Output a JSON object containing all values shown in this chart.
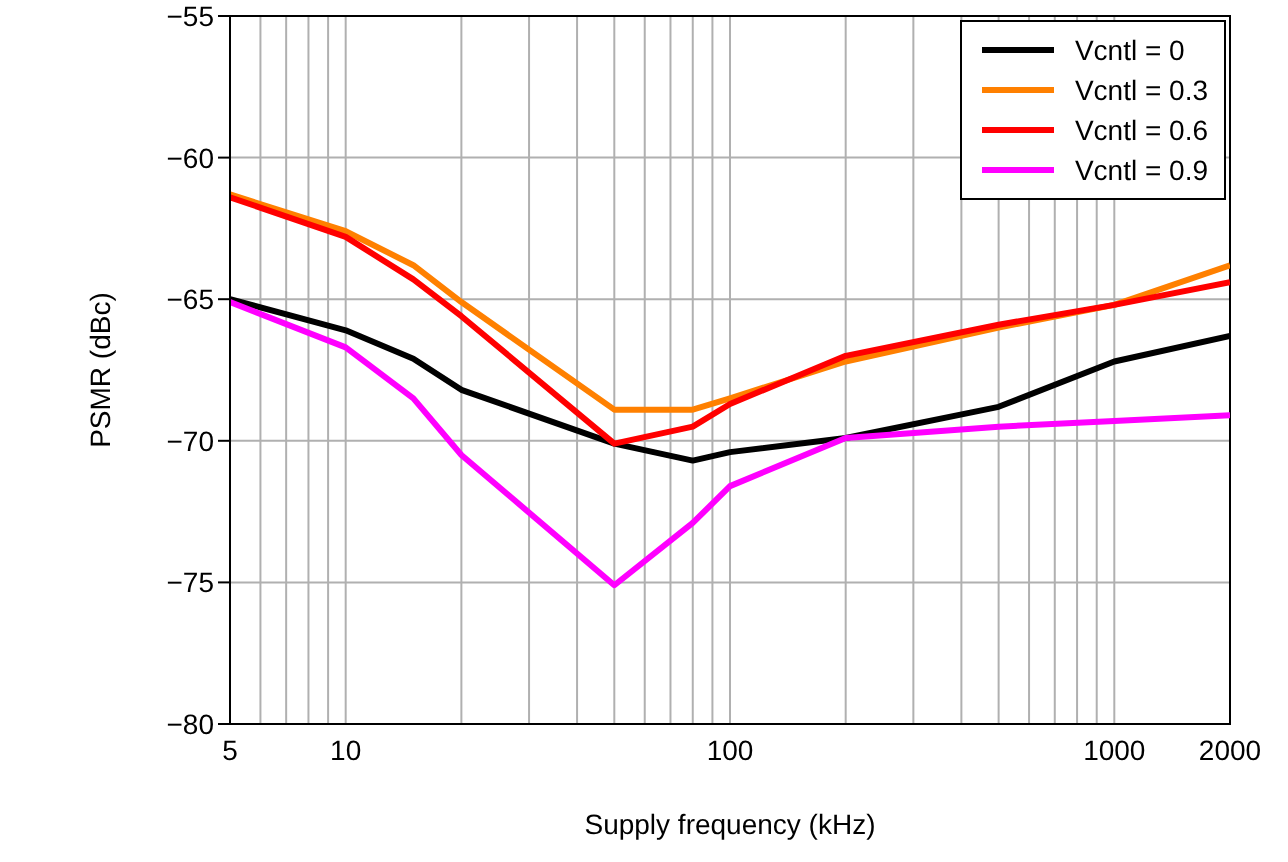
{
  "chart_data": {
    "type": "line",
    "xlabel": "Supply frequency (kHz)",
    "ylabel": "PSMR (dBc)",
    "x": [
      5,
      10,
      15,
      20,
      50,
      80,
      100,
      200,
      500,
      1000,
      2000
    ],
    "series": [
      {
        "name": "Vcntl = 0",
        "color": "#000000",
        "values": [
          -65.0,
          -66.1,
          -67.1,
          -68.2,
          -70.1,
          -70.7,
          -70.4,
          -69.9,
          -68.8,
          -67.2,
          -66.3
        ]
      },
      {
        "name": "Vcntl = 0.3",
        "color": "#ff8000",
        "values": [
          -61.3,
          -62.6,
          -63.8,
          -65.1,
          -68.9,
          -68.9,
          -68.5,
          -67.2,
          -66.0,
          -65.2,
          -63.8
        ]
      },
      {
        "name": "Vcntl = 0.6",
        "color": "#ff0000",
        "values": [
          -61.4,
          -62.8,
          -64.3,
          -65.6,
          -70.1,
          -69.5,
          -68.7,
          -67.0,
          -65.9,
          -65.2,
          -64.4
        ]
      },
      {
        "name": "Vcntl = 0.9",
        "color": "#ff00ff",
        "values": [
          -65.1,
          -66.7,
          -68.5,
          -70.5,
          -75.1,
          -72.9,
          -71.6,
          -69.9,
          -69.5,
          -69.3,
          -69.1
        ]
      }
    ],
    "log": "x",
    "xlim": [
      5,
      2000
    ],
    "xticks": [
      5,
      {
        "value": 6,
        "label": null
      },
      {
        "value": 7,
        "label": null
      },
      {
        "value": 8,
        "label": null
      },
      {
        "value": 9,
        "label": null
      },
      10,
      {
        "value": 20,
        "label": null
      },
      {
        "value": 30,
        "label": null
      },
      {
        "value": 40,
        "label": null
      },
      {
        "value": 50,
        "label": null
      },
      {
        "value": 60,
        "label": null
      },
      {
        "value": 70,
        "label": null
      },
      {
        "value": 80,
        "label": null
      },
      {
        "value": 90,
        "label": null
      },
      100,
      {
        "value": 200,
        "label": null
      },
      {
        "value": 300,
        "label": null
      },
      {
        "value": 400,
        "label": null
      },
      {
        "value": 500,
        "label": null
      },
      {
        "value": 600,
        "label": null
      },
      {
        "value": 700,
        "label": null
      },
      {
        "value": 800,
        "label": null
      },
      {
        "value": 900,
        "label": null
      },
      1000,
      2000
    ],
    "ylim": [
      -80,
      -55
    ],
    "yticks": [
      -80,
      -75,
      -70,
      -65,
      -60,
      -55
    ],
    "grid": true,
    "legend": "top right",
    "marker": "none",
    "line_style": "solid"
  }
}
